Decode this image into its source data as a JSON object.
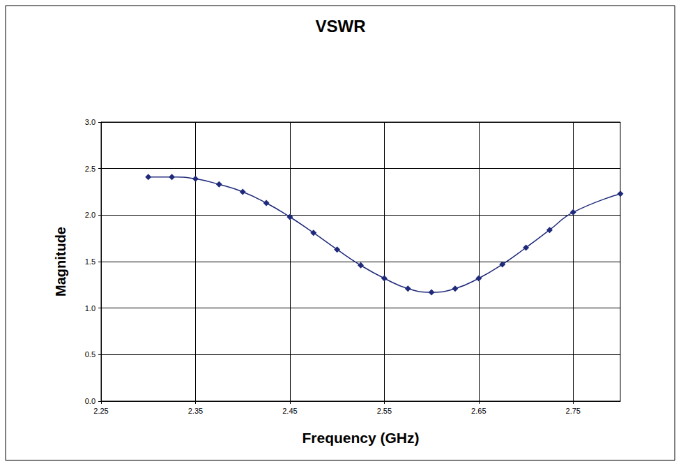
{
  "chart_data": {
    "type": "line",
    "title": "VSWR",
    "x_label": "Frequency (GHz)",
    "y_label": "Magnitude",
    "x": [
      2.3,
      2.325,
      2.35,
      2.375,
      2.4,
      2.425,
      2.45,
      2.475,
      2.5,
      2.525,
      2.55,
      2.575,
      2.6,
      2.625,
      2.65,
      2.675,
      2.7,
      2.725,
      2.75,
      2.8
    ],
    "values": [
      2.41,
      2.41,
      2.39,
      2.33,
      2.25,
      2.13,
      1.98,
      1.81,
      1.63,
      1.46,
      1.32,
      1.21,
      1.17,
      1.21,
      1.32,
      1.47,
      1.65,
      1.84,
      2.03,
      2.23
    ],
    "color": "#1f2a7a",
    "marker": "diamond",
    "line_style": "smooth",
    "xlim": [
      2.25,
      2.8
    ],
    "xticks": [
      2.25,
      2.35,
      2.45,
      2.55,
      2.65,
      2.75
    ],
    "ylim": [
      0,
      3
    ],
    "yticks": [
      {
        "value": 0,
        "label": "0.0"
      },
      {
        "value": 0.5,
        "label": "0.5"
      },
      {
        "value": 1,
        "label": "1.0"
      },
      {
        "value": 1.5,
        "label": "1.5"
      },
      {
        "value": 2,
        "label": "2.0"
      },
      {
        "value": 2.5,
        "label": "2.5"
      },
      {
        "value": 3,
        "label": "3.0"
      }
    ],
    "grid": true
  }
}
